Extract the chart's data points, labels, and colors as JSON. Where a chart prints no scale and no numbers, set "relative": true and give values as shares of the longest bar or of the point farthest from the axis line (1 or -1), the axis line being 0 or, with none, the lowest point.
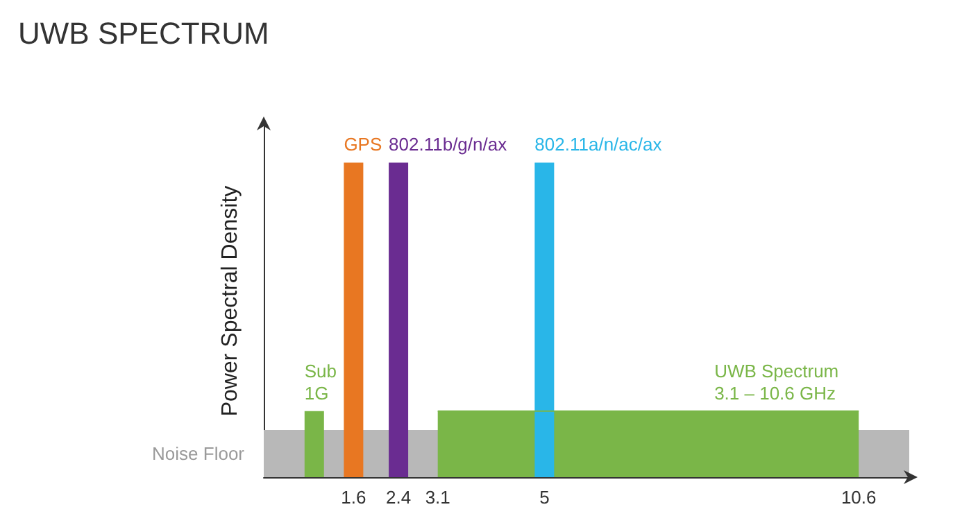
{
  "chart_data": {
    "type": "bar",
    "title": "UWB SPECTRUM",
    "ylabel": "Power Spectral Density",
    "relative": true,
    "xlim": [
      0,
      11.5
    ],
    "xticks": [
      1.6,
      2.4,
      3.1,
      5,
      10.6
    ],
    "series": [
      {
        "x": [
          0.9,
          1.6,
          2.4,
          5
        ],
        "values": [
          0.21,
          1,
          1,
          1
        ],
        "colors": [
          "#7ab648",
          "#e87722",
          "#6a2c91",
          "#29b6e8"
        ]
      },
      {
        "type": "area",
        "x": [
          3.1,
          10.6
        ],
        "values": [
          0.21,
          0.21
        ],
        "color": "#7ab648"
      }
    ],
    "bands": [
      {
        "axis": "y",
        "from": 0,
        "to": 0.15,
        "label": "Noise Floor",
        "color": "#b8b8b8"
      }
    ],
    "annotations": [
      {
        "text": "Sub\n1G",
        "x": 0.9,
        "y": 0.21
      },
      {
        "text": "GPS",
        "x": 1.6,
        "y": 1
      },
      {
        "text": "802.11b/g/n/ax",
        "x": 2.4,
        "y": 1
      },
      {
        "text": "802.11a/n/ac/ax",
        "x": 5,
        "y": 1
      },
      {
        "text": "UWB Spectrum\n3.1 – 10.6 GHz",
        "x": 8.2,
        "y": 0.21
      }
    ],
    "grid": false
  }
}
